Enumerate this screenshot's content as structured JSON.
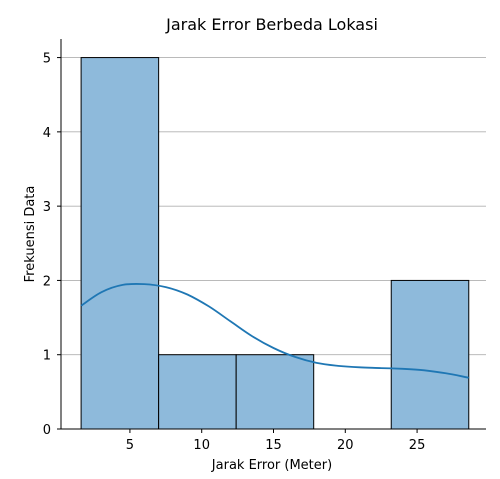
{
  "chart_data": {
    "type": "bar",
    "title": "Jarak Error Berbeda Lokasi",
    "xlabel": "Jarak Error (Meter)",
    "ylabel": "Frekuensi Data",
    "xlim": [
      0.2,
      29.8
    ],
    "ylim": [
      0,
      5.25
    ],
    "x_ticks": [
      5,
      10,
      15,
      20,
      25
    ],
    "y_ticks": [
      0,
      1,
      2,
      3,
      4,
      5
    ],
    "grid": "horizontal",
    "bins": [
      {
        "start": 1.6,
        "end": 7.0,
        "count": 5
      },
      {
        "start": 7.0,
        "end": 12.4,
        "count": 1
      },
      {
        "start": 12.4,
        "end": 17.8,
        "count": 1
      },
      {
        "start": 17.8,
        "end": 23.2,
        "count": 0
      },
      {
        "start": 23.2,
        "end": 28.6,
        "count": 2
      }
    ],
    "kde_curve": {
      "x": [
        1.6,
        3.0,
        4.5,
        6.0,
        7.5,
        9.0,
        10.5,
        12.0,
        13.5,
        15.0,
        16.5,
        18.0,
        19.5,
        21.0,
        22.5,
        24.0,
        25.5,
        27.0,
        28.6
      ],
      "y": [
        1.66,
        1.84,
        1.94,
        1.95,
        1.91,
        1.81,
        1.65,
        1.45,
        1.25,
        1.09,
        0.97,
        0.89,
        0.85,
        0.83,
        0.82,
        0.81,
        0.79,
        0.75,
        0.69
      ]
    },
    "colors": {
      "bar_fill": "#8ebadb",
      "bar_edge": "#000000",
      "kde_line": "#1f77b4"
    }
  }
}
